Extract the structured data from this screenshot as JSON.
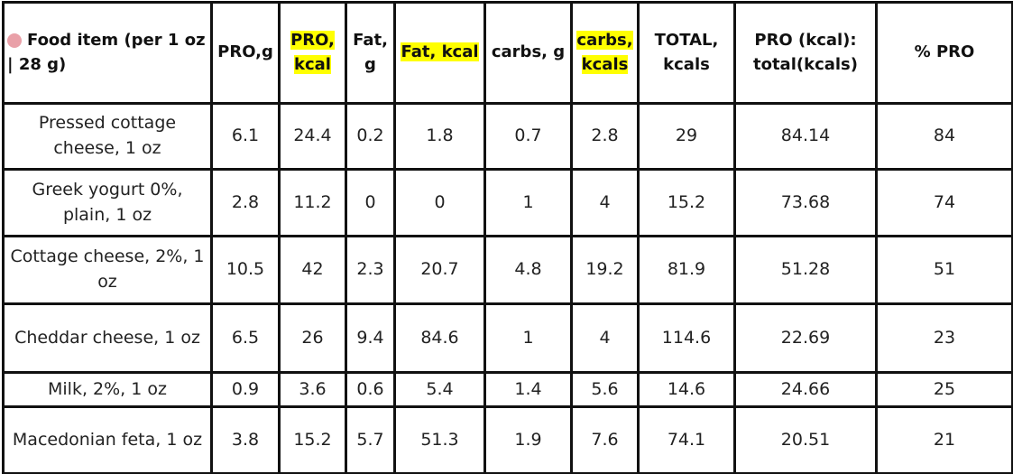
{
  "table": {
    "header": [
      "Food item (per 1 oz | 28 g)",
      "PRO,g",
      "PRO, kcal",
      "Fat, g",
      "Fat, kcal",
      "carbs, g",
      "carbs, kcals",
      "TOTAL, kcals",
      "PRO (kcal): total(kcals)",
      "% PRO"
    ],
    "rows": [
      [
        "Pressed cottage cheese, 1 oz",
        "6.1",
        "24.4",
        "0.2",
        "1.8",
        "0.7",
        "2.8",
        "29",
        "84.14",
        "84"
      ],
      [
        "Greek yogurt 0%, plain, 1 oz",
        "2.8",
        "11.2",
        "0",
        "0",
        "1",
        "4",
        "15.2",
        "73.68",
        "74"
      ],
      [
        "Cottage cheese, 2%, 1 oz",
        "10.5",
        "42",
        "2.3",
        "20.7",
        "4.8",
        "19.2",
        "81.9",
        "51.28",
        "51"
      ],
      [
        "Cheddar cheese, 1 oz",
        "6.5",
        "26",
        "9.4",
        "84.6",
        "1",
        "4",
        "114.6",
        "22.69",
        "23"
      ],
      [
        "Milk, 2%, 1 oz",
        "0.9",
        "3.6",
        "0.6",
        "5.4",
        "1.4",
        "5.6",
        "14.6",
        "24.66",
        "25"
      ],
      [
        "Macedonian feta, 1 oz",
        "3.8",
        "15.2",
        "5.7",
        "51.3",
        "1.9",
        "7.6",
        "74.1",
        "20.51",
        "21"
      ]
    ]
  }
}
